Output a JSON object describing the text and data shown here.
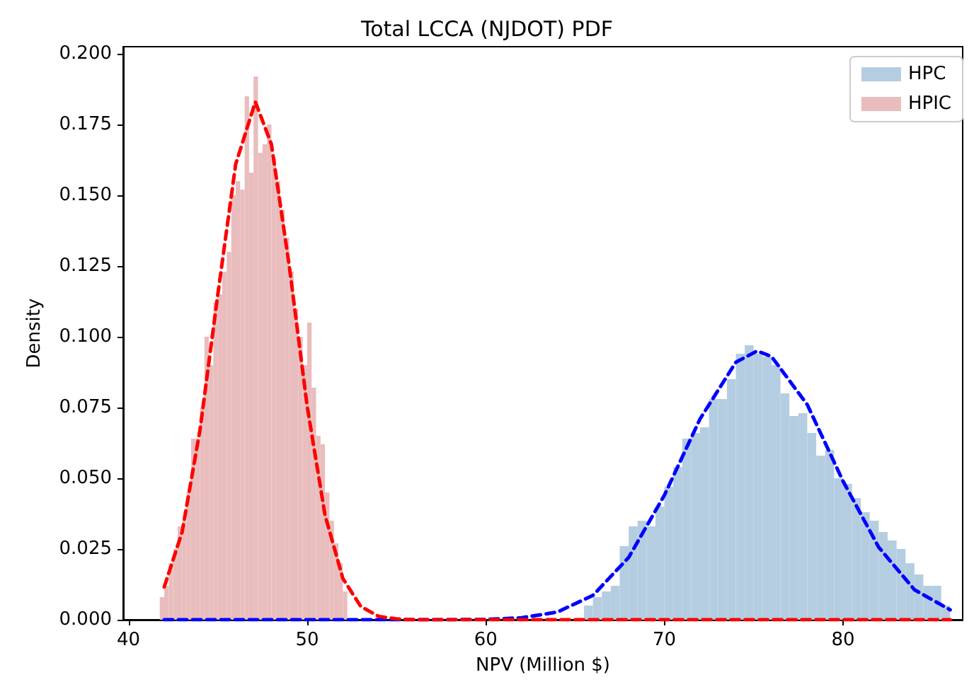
{
  "chart_data": {
    "type": "histogram",
    "title": "Total LCCA (NJDOT) PDF",
    "xlabel": "NPV (Million $)",
    "ylabel": "Density",
    "xlim": [
      39.7,
      86.7
    ],
    "xticks": [
      40,
      50,
      60,
      70,
      80
    ],
    "ylim": [
      0,
      0.2025
    ],
    "yticks": [
      {
        "value": 0,
        "label": "0.000"
      },
      {
        "value": 0.025,
        "label": "0.025"
      },
      {
        "value": 0.05,
        "label": "0.050"
      },
      {
        "value": 0.075,
        "label": "0.075"
      },
      {
        "value": 0.1,
        "label": "0.100"
      },
      {
        "value": 0.125,
        "label": "0.125"
      },
      {
        "value": 0.15,
        "label": "0.150"
      },
      {
        "value": 0.175,
        "label": "0.175"
      },
      {
        "value": 0.2,
        "label": "0.200"
      }
    ],
    "legend": "top right",
    "grid": false,
    "series": [
      {
        "name": "HPC",
        "color": "#b5cde1",
        "bins": [
          65.5,
          66,
          66.5,
          67,
          67.5,
          68,
          68.5,
          69,
          69.5,
          70,
          70.5,
          71,
          71.5,
          72,
          72.5,
          73,
          73.5,
          74,
          74.5,
          75,
          75.5,
          76,
          76.5,
          77,
          77.5,
          78,
          78.5,
          79,
          79.5,
          80,
          80.5,
          81,
          81.5,
          82,
          82.5,
          83,
          83.5,
          84,
          84.5,
          85,
          85.5,
          86
        ],
        "values": [
          0.005,
          0.008,
          0.01,
          0.012,
          0.026,
          0.033,
          0.035,
          0.033,
          0.04,
          0.047,
          0.054,
          0.064,
          0.066,
          0.068,
          0.078,
          0.078,
          0.085,
          0.094,
          0.097,
          0.094,
          0.093,
          0.09,
          0.08,
          0.072,
          0.073,
          0.066,
          0.058,
          0.06,
          0.05,
          0.048,
          0.043,
          0.038,
          0.035,
          0.031,
          0.028,
          0.025,
          0.02,
          0.016,
          0.012,
          0.012,
          0.005
        ]
      },
      {
        "name": "HPIC",
        "color": "#e9bdbd",
        "bins": [
          41.75,
          42,
          42.25,
          42.5,
          42.75,
          43,
          43.25,
          43.5,
          43.75,
          44,
          44.25,
          44.5,
          44.75,
          45,
          45.25,
          45.5,
          45.75,
          46,
          46.25,
          46.5,
          46.75,
          47,
          47.25,
          47.5,
          47.75,
          48,
          48.25,
          48.5,
          48.75,
          49,
          49.25,
          49.5,
          49.75,
          50,
          50.25,
          50.5,
          50.75,
          51,
          51.25,
          51.5,
          51.75,
          52,
          52.25
        ],
        "values": [
          0.008,
          0.012,
          0.02,
          0.025,
          0.033,
          0.035,
          0.045,
          0.064,
          0.064,
          0.075,
          0.1,
          0.09,
          0.112,
          0.115,
          0.123,
          0.13,
          0.15,
          0.155,
          0.152,
          0.185,
          0.158,
          0.192,
          0.165,
          0.168,
          0.175,
          0.163,
          0.155,
          0.145,
          0.135,
          0.123,
          0.11,
          0.1,
          0.09,
          0.105,
          0.082,
          0.065,
          0.062,
          0.045,
          0.035,
          0.027,
          0.02,
          0.01
        ]
      },
      {
        "type": "line",
        "color": "#0000ff",
        "line_style": "dashed",
        "x": [
          42,
          46,
          50,
          54,
          58,
          60,
          62,
          64,
          66,
          68,
          70,
          72,
          74,
          75.2,
          76,
          78,
          80,
          82,
          84,
          86
        ],
        "values": [
          0,
          0,
          0,
          0,
          0,
          0.0001,
          0.0007,
          0.0027,
          0.0086,
          0.022,
          0.044,
          0.071,
          0.091,
          0.095,
          0.093,
          0.076,
          0.049,
          0.0256,
          0.0106,
          0.0035
        ]
      },
      {
        "type": "line",
        "color": "#ff0000",
        "line_style": "dashed",
        "x": [
          42,
          43,
          44,
          45,
          46,
          47.1,
          48,
          49,
          50,
          51,
          52,
          53,
          54,
          55,
          56,
          60,
          70,
          80,
          86
        ],
        "values": [
          0.0116,
          0.031,
          0.067,
          0.115,
          0.161,
          0.183,
          0.168,
          0.125,
          0.0755,
          0.037,
          0.0146,
          0.0047,
          0.0012,
          0.0003,
          0,
          0,
          0,
          0,
          0
        ]
      }
    ]
  }
}
